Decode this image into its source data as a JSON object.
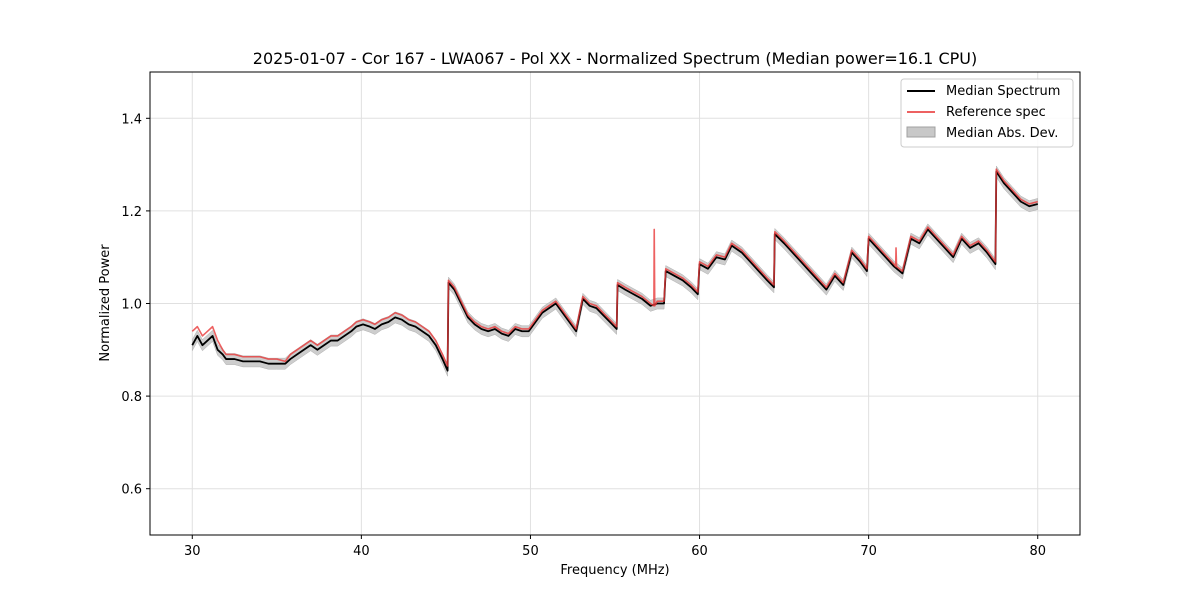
{
  "chart_data": {
    "type": "line",
    "title": "2025-01-07 - Cor 167 - LWA067 - Pol XX - Normalized Spectrum (Median power=16.1 CPU)",
    "xlabel": "Frequency (MHz)",
    "ylabel": "Normalized Power",
    "xlim": [
      27.5,
      82.5
    ],
    "ylim": [
      0.5,
      1.5
    ],
    "xticks": [
      30,
      40,
      50,
      60,
      70,
      80
    ],
    "yticks": [
      0.6,
      0.8,
      1.0,
      1.2,
      1.4
    ],
    "xtick_labels": [
      "30",
      "40",
      "50",
      "60",
      "70",
      "80"
    ],
    "ytick_labels": [
      "0.6",
      "0.8",
      "1.0",
      "1.2",
      "1.4"
    ],
    "grid": true,
    "legend_position": "top-right",
    "mad_band_halfwidth": 0.012,
    "series": [
      {
        "name": "Median Spectrum",
        "color": "#000000",
        "x": [
          30.0,
          30.3,
          30.6,
          30.9,
          31.2,
          31.5,
          31.8,
          32.0,
          32.5,
          33.0,
          33.5,
          34.0,
          34.5,
          35.0,
          35.5,
          35.8,
          36.2,
          36.6,
          37.0,
          37.4,
          37.8,
          38.2,
          38.6,
          39.0,
          39.4,
          39.7,
          40.1,
          40.5,
          40.8,
          41.2,
          41.6,
          42.0,
          42.4,
          42.8,
          43.2,
          43.6,
          44.0,
          44.4,
          44.8,
          45.1,
          45.15,
          45.5,
          45.9,
          46.3,
          46.7,
          47.1,
          47.5,
          47.9,
          48.3,
          48.7,
          49.1,
          49.5,
          49.9,
          50.3,
          50.7,
          51.1,
          51.5,
          51.9,
          52.3,
          52.7,
          53.1,
          53.5,
          53.9,
          54.3,
          54.7,
          55.1,
          55.15,
          55.6,
          56.1,
          56.6,
          57.1,
          57.5,
          57.9,
          58.0,
          58.5,
          59.0,
          59.5,
          59.9,
          60.0,
          60.5,
          61.0,
          61.5,
          61.9,
          62.5,
          63.0,
          63.5,
          64.0,
          64.4,
          64.45,
          65.0,
          65.5,
          66.0,
          66.5,
          67.0,
          67.5,
          68.0,
          68.5,
          69.0,
          69.5,
          69.9,
          70.0,
          70.5,
          71.0,
          71.5,
          72.0,
          72.5,
          73.0,
          73.5,
          74.0,
          74.5,
          75.0,
          75.5,
          76.0,
          76.5,
          77.0,
          77.5,
          77.55,
          78.0,
          78.5,
          79.0,
          79.5,
          80.0
        ],
        "values": [
          0.91,
          0.93,
          0.91,
          0.92,
          0.93,
          0.9,
          0.89,
          0.88,
          0.88,
          0.875,
          0.875,
          0.875,
          0.87,
          0.87,
          0.87,
          0.88,
          0.89,
          0.9,
          0.91,
          0.9,
          0.91,
          0.92,
          0.92,
          0.93,
          0.94,
          0.95,
          0.955,
          0.95,
          0.945,
          0.955,
          0.96,
          0.97,
          0.965,
          0.955,
          0.95,
          0.94,
          0.93,
          0.91,
          0.88,
          0.855,
          1.045,
          1.03,
          1.0,
          0.97,
          0.955,
          0.945,
          0.94,
          0.945,
          0.935,
          0.93,
          0.945,
          0.94,
          0.94,
          0.96,
          0.98,
          0.99,
          1.0,
          0.98,
          0.96,
          0.94,
          1.01,
          0.995,
          0.99,
          0.975,
          0.96,
          0.945,
          1.04,
          1.03,
          1.02,
          1.01,
          0.995,
          1.0,
          1.0,
          1.07,
          1.06,
          1.05,
          1.035,
          1.02,
          1.085,
          1.075,
          1.1,
          1.095,
          1.125,
          1.11,
          1.09,
          1.07,
          1.05,
          1.035,
          1.15,
          1.13,
          1.11,
          1.09,
          1.07,
          1.05,
          1.03,
          1.06,
          1.04,
          1.11,
          1.09,
          1.07,
          1.14,
          1.12,
          1.1,
          1.08,
          1.065,
          1.14,
          1.13,
          1.16,
          1.14,
          1.12,
          1.1,
          1.14,
          1.12,
          1.13,
          1.11,
          1.085,
          1.285,
          1.26,
          1.24,
          1.22,
          1.21,
          1.215
        ]
      },
      {
        "name": "Reference spec",
        "color": "#e8393a",
        "x": [
          30.0,
          30.3,
          30.6,
          30.9,
          31.2,
          31.5,
          31.8,
          32.0,
          32.5,
          33.0,
          33.5,
          34.0,
          34.5,
          35.0,
          35.5,
          35.8,
          36.2,
          36.6,
          37.0,
          37.4,
          37.8,
          38.2,
          38.6,
          39.0,
          39.4,
          39.7,
          40.1,
          40.5,
          40.8,
          41.2,
          41.6,
          42.0,
          42.4,
          42.8,
          43.2,
          43.6,
          44.0,
          44.4,
          44.8,
          45.1,
          45.15,
          45.5,
          45.9,
          46.3,
          46.7,
          47.1,
          47.5,
          47.9,
          48.3,
          48.7,
          49.1,
          49.5,
          49.9,
          50.3,
          50.7,
          51.1,
          51.5,
          51.9,
          52.3,
          52.7,
          53.1,
          53.5,
          53.9,
          54.3,
          54.7,
          55.1,
          55.15,
          55.6,
          56.1,
          56.6,
          57.1,
          57.3,
          57.32,
          57.35,
          57.5,
          57.9,
          58.0,
          58.5,
          59.0,
          59.5,
          59.9,
          60.0,
          60.5,
          61.0,
          61.5,
          61.9,
          62.5,
          63.0,
          63.5,
          64.0,
          64.4,
          64.45,
          65.0,
          65.5,
          66.0,
          66.5,
          67.0,
          67.5,
          68.0,
          68.5,
          69.0,
          69.5,
          69.9,
          70.0,
          70.5,
          71.0,
          71.5,
          71.6,
          71.62,
          71.65,
          72.0,
          72.5,
          73.0,
          73.5,
          74.0,
          74.5,
          75.0,
          75.5,
          76.0,
          76.5,
          77.0,
          77.5,
          77.55,
          78.0,
          78.5,
          79.0,
          79.5,
          80.0
        ],
        "values": [
          0.94,
          0.95,
          0.93,
          0.94,
          0.95,
          0.92,
          0.9,
          0.89,
          0.89,
          0.885,
          0.885,
          0.885,
          0.88,
          0.88,
          0.875,
          0.89,
          0.9,
          0.91,
          0.92,
          0.91,
          0.92,
          0.93,
          0.93,
          0.94,
          0.95,
          0.96,
          0.965,
          0.96,
          0.955,
          0.965,
          0.97,
          0.98,
          0.975,
          0.965,
          0.96,
          0.95,
          0.94,
          0.92,
          0.89,
          0.865,
          1.05,
          1.035,
          1.005,
          0.975,
          0.96,
          0.95,
          0.945,
          0.95,
          0.94,
          0.935,
          0.95,
          0.945,
          0.945,
          0.965,
          0.985,
          0.995,
          1.005,
          0.985,
          0.965,
          0.945,
          1.015,
          1.0,
          0.995,
          0.98,
          0.965,
          0.95,
          1.045,
          1.035,
          1.025,
          1.015,
          1.0,
          0.995,
          1.16,
          0.995,
          1.005,
          1.005,
          1.075,
          1.065,
          1.055,
          1.04,
          1.025,
          1.09,
          1.08,
          1.105,
          1.1,
          1.13,
          1.115,
          1.095,
          1.075,
          1.055,
          1.04,
          1.155,
          1.135,
          1.115,
          1.095,
          1.075,
          1.055,
          1.035,
          1.065,
          1.045,
          1.115,
          1.095,
          1.075,
          1.145,
          1.125,
          1.105,
          1.085,
          1.08,
          1.12,
          1.08,
          1.07,
          1.145,
          1.135,
          1.165,
          1.145,
          1.125,
          1.105,
          1.145,
          1.125,
          1.135,
          1.115,
          1.09,
          1.29,
          1.265,
          1.245,
          1.225,
          1.215,
          1.22
        ]
      }
    ],
    "legend": {
      "items": [
        {
          "label": "Median Spectrum",
          "kind": "line",
          "color": "#000000"
        },
        {
          "label": "Reference spec",
          "kind": "line",
          "color": "#e8393a"
        },
        {
          "label": "Median Abs. Dev.",
          "kind": "patch",
          "color": "#c8c8c8"
        }
      ]
    }
  }
}
